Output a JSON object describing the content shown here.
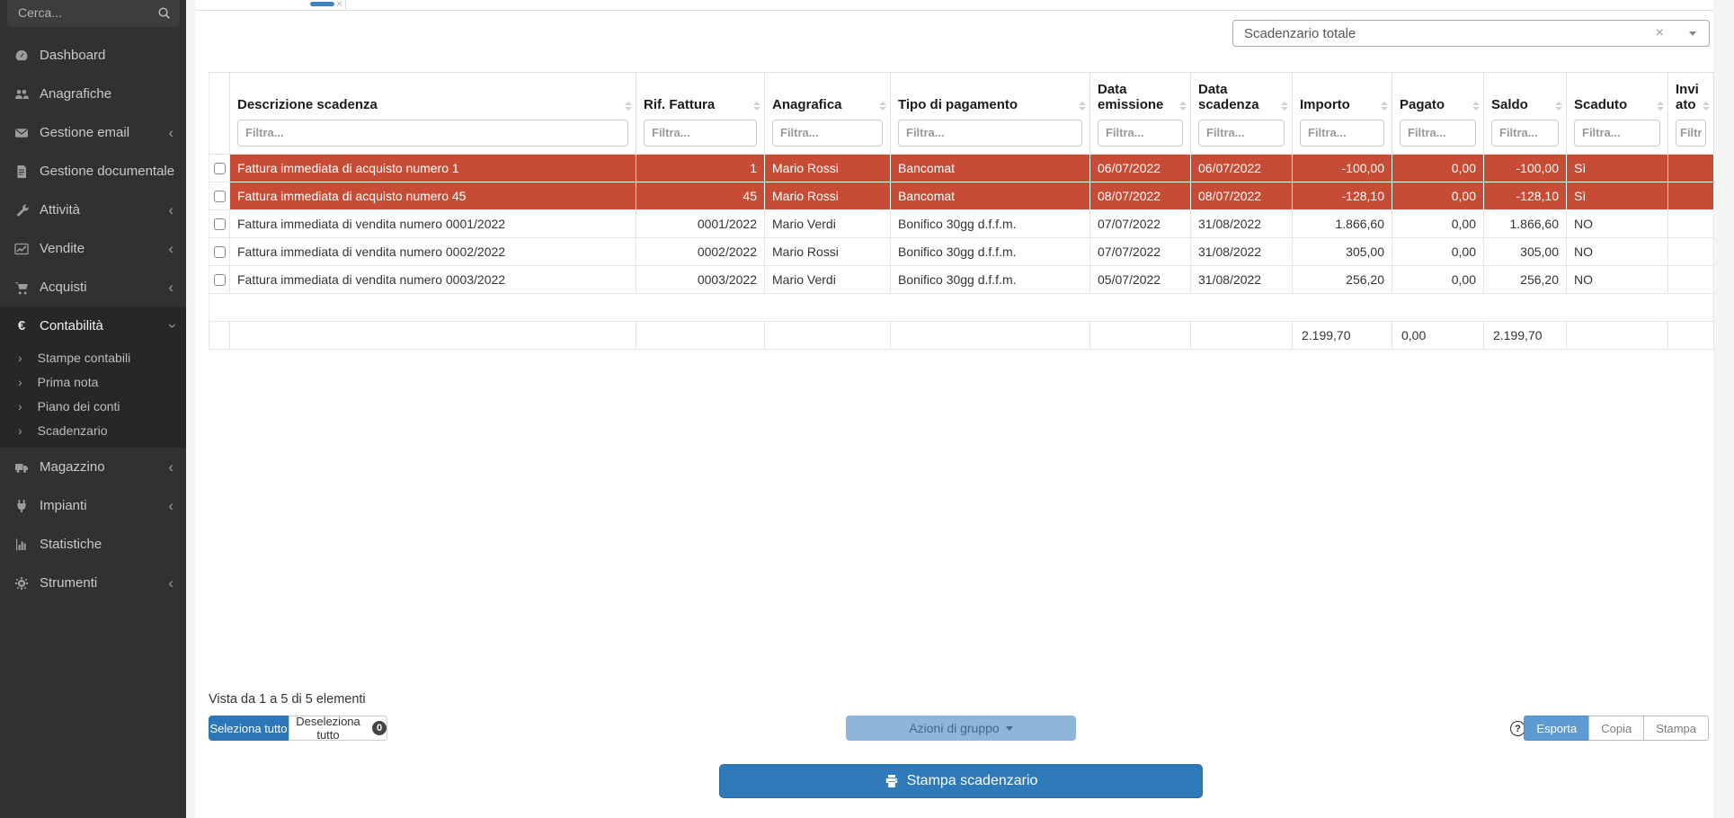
{
  "sidebar": {
    "search_placeholder": "Cerca...",
    "items": [
      {
        "label": "Dashboard",
        "icon": "dashboard-icon",
        "chevron": ""
      },
      {
        "label": "Anagrafiche",
        "icon": "users-icon",
        "chevron": ""
      },
      {
        "label": "Gestione email",
        "icon": "envelope-icon",
        "chevron": "collapsed"
      },
      {
        "label": "Gestione documentale",
        "icon": "document-icon",
        "chevron": ""
      },
      {
        "label": "Attività",
        "icon": "wrench-icon",
        "chevron": "collapsed"
      },
      {
        "label": "Vendite",
        "icon": "chart-line-icon",
        "chevron": "collapsed"
      },
      {
        "label": "Acquisti",
        "icon": "cart-icon",
        "chevron": "collapsed"
      },
      {
        "label": "Contabilità",
        "icon": "euro-icon",
        "chevron": "expanded"
      },
      {
        "label": "Magazzino",
        "icon": "truck-icon",
        "chevron": "collapsed"
      },
      {
        "label": "Impianti",
        "icon": "plug-icon",
        "chevron": "collapsed"
      },
      {
        "label": "Statistiche",
        "icon": "bar-chart-icon",
        "chevron": ""
      },
      {
        "label": "Strumenti",
        "icon": "gear-icon",
        "chevron": "collapsed"
      }
    ],
    "submenu": [
      {
        "label": "Stampe contabili"
      },
      {
        "label": "Prima nota"
      },
      {
        "label": "Piano dei conti"
      },
      {
        "label": "Scadenzario"
      }
    ]
  },
  "topbar": {
    "tab_close": "×"
  },
  "toolbar": {
    "scope_value": "Scadenzario totale",
    "clear": "×"
  },
  "table": {
    "filter_placeholder": "Filtra...",
    "columns": [
      {
        "label": "Descrizione scadenza"
      },
      {
        "label": "Rif. Fattura"
      },
      {
        "label": "Anagrafica"
      },
      {
        "label": "Tipo di pagamento"
      },
      {
        "label": "Data emissione"
      },
      {
        "label": "Data scadenza"
      },
      {
        "label": "Importo"
      },
      {
        "label": "Pagato"
      },
      {
        "label": "Saldo"
      },
      {
        "label": "Scaduto"
      },
      {
        "label": "Inviato"
      }
    ],
    "rows": [
      {
        "overdue": true,
        "cells": [
          "Fattura immediata di acquisto numero 1",
          "1",
          "Mario Rossi",
          "Bancomat",
          "06/07/2022",
          "06/07/2022",
          "-100,00",
          "0,00",
          "-100,00",
          "Sì",
          ""
        ]
      },
      {
        "overdue": true,
        "cells": [
          "Fattura immediata di acquisto numero 45",
          "45",
          "Mario Rossi",
          "Bancomat",
          "08/07/2022",
          "08/07/2022",
          "-128,10",
          "0,00",
          "-128,10",
          "Sì",
          ""
        ]
      },
      {
        "overdue": false,
        "cells": [
          "Fattura immediata di vendita numero 0001/2022",
          "0001/2022",
          "Mario Verdi",
          "Bonifico 30gg d.f.f.m.",
          "07/07/2022",
          "31/08/2022",
          "1.866,60",
          "0,00",
          "1.866,60",
          "NO",
          ""
        ]
      },
      {
        "overdue": false,
        "cells": [
          "Fattura immediata di vendita numero 0002/2022",
          "0002/2022",
          "Mario Rossi",
          "Bonifico 30gg d.f.f.m.",
          "07/07/2022",
          "31/08/2022",
          "305,00",
          "0,00",
          "305,00",
          "NO",
          ""
        ]
      },
      {
        "overdue": false,
        "cells": [
          "Fattura immediata di vendita numero 0003/2022",
          "0003/2022",
          "Mario Verdi",
          "Bonifico 30gg d.f.f.m.",
          "05/07/2022",
          "31/08/2022",
          "256,20",
          "0,00",
          "256,20",
          "NO",
          ""
        ]
      }
    ],
    "totals": {
      "importo": "2.199,70",
      "pagato": "0,00",
      "saldo": "2.199,70"
    }
  },
  "footer": {
    "info": "Vista da 1 a 5 di 5 elementi",
    "select_all": "Seleziona tutto",
    "deselect_all": "Deseleziona tutto",
    "deselect_count": "0",
    "group_actions": "Azioni di gruppo",
    "help": "?",
    "export": "Esporta",
    "copy": "Copia",
    "print": "Stampa",
    "print_schedule": "Stampa scadenzario"
  },
  "colors": {
    "accent_blue": "#2e79b8",
    "light_blue": "#8ab2d8",
    "overdue_red": "#c74c35",
    "sidebar_bg": "#313131"
  }
}
